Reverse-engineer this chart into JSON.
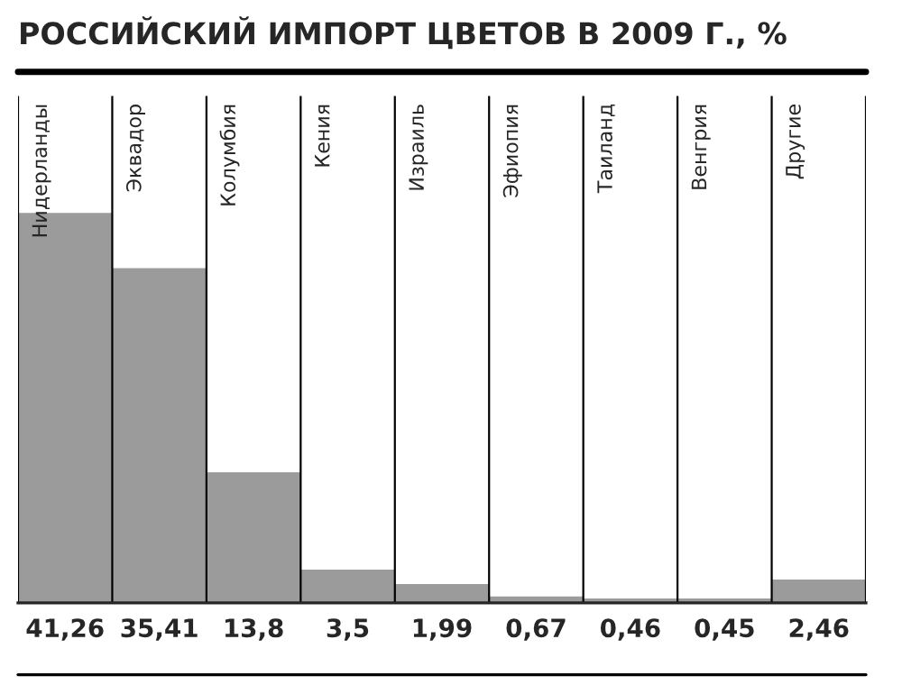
{
  "chart_data": {
    "type": "bar",
    "title": "РОССИЙСКИЙ ИМПОРТ ЦВЕТОВ В 2009 Г., %",
    "categories": [
      "Нидерланды",
      "Эквадор",
      "Колумбия",
      "Кения",
      "Израиль",
      "Эфиопия",
      "Таиланд",
      "Венгрия",
      "Другие"
    ],
    "values": [
      41.26,
      35.41,
      13.8,
      3.5,
      1.99,
      0.67,
      0.46,
      0.45,
      2.46
    ],
    "value_labels": [
      "41,26",
      "35,41",
      "13,8",
      "3,5",
      "1,99",
      "0,67",
      "0,46",
      "0,45",
      "2,46"
    ],
    "color": "#9b9b9b",
    "grid": "x"
  }
}
